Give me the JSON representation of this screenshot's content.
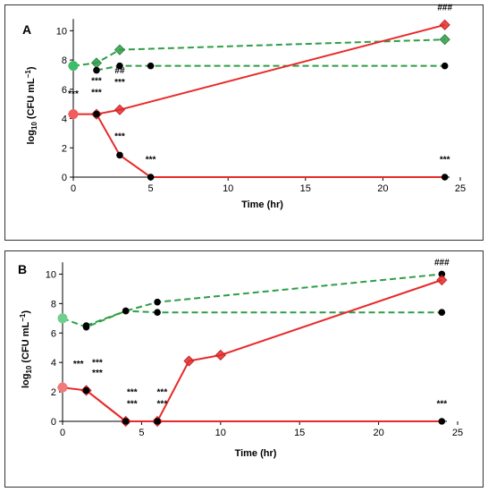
{
  "chart_data": [
    {
      "type": "line",
      "panel_label": "A",
      "xlabel": "Time (hr)",
      "ylabel_main": "log",
      "ylabel_sub": "10",
      "ylabel_rest": " (CFU mL",
      "ylabel_sup": "−1",
      "ylabel_end": ")",
      "xlim": [
        0,
        25
      ],
      "ylim": [
        0,
        11
      ],
      "xticks": [
        "0",
        "5",
        "10",
        "15",
        "20",
        "25"
      ],
      "yticks": [
        "0",
        "2",
        "4",
        "6",
        "8",
        "10"
      ],
      "grid": false,
      "series": [
        {
          "color": "#2e9e46",
          "dash": true,
          "marker": "diamond",
          "points": [
            [
              0,
              7.6
            ],
            [
              1.5,
              7.8
            ],
            [
              3,
              8.7
            ],
            [
              24,
              9.4
            ]
          ]
        },
        {
          "color": "#2e9e46",
          "dash": true,
          "marker": "circle",
          "points": [
            [
              1.5,
              7.3
            ],
            [
              3,
              7.6
            ],
            [
              5,
              7.6
            ],
            [
              24,
              7.6
            ]
          ]
        },
        {
          "color": "#e8292a",
          "dash": false,
          "marker": "diamond",
          "points": [
            [
              0,
              4.3
            ],
            [
              1.5,
              4.3
            ],
            [
              3,
              4.6
            ],
            [
              24,
              10.4
            ]
          ]
        },
        {
          "color": "#e8292a",
          "dash": false,
          "marker": "circle",
          "points": [
            [
              1.5,
              4.3
            ],
            [
              3,
              1.5
            ],
            [
              5,
              0
            ],
            [
              24,
              0
            ]
          ]
        }
      ],
      "annotations": [
        {
          "text": "***",
          "x": 0,
          "y": 5.5
        },
        {
          "text": "***",
          "x": 1.5,
          "y": 6.4
        },
        {
          "text": "***",
          "x": 1.5,
          "y": 5.6
        },
        {
          "text": "##",
          "x": 3,
          "y": 7.1
        },
        {
          "text": "***",
          "x": 3,
          "y": 6.3
        },
        {
          "text": "***",
          "x": 3,
          "y": 2.6
        },
        {
          "text": "***",
          "x": 5,
          "y": 1.0
        },
        {
          "text": "***",
          "x": 24,
          "y": 1.0
        },
        {
          "text": "###",
          "x": 24,
          "y": 11.4
        }
      ]
    },
    {
      "type": "line",
      "panel_label": "B",
      "xlabel": "Time (hr)",
      "ylabel_main": "log",
      "ylabel_sub": "10",
      "ylabel_rest": " (CFU mL",
      "ylabel_sup": "−1",
      "ylabel_end": ")",
      "xlim": [
        0,
        25
      ],
      "ylim": [
        0,
        11
      ],
      "xticks": [
        "0",
        "5",
        "10",
        "15",
        "20",
        "25"
      ],
      "yticks": [
        "0",
        "2",
        "4",
        "6",
        "8",
        "10"
      ],
      "grid": false,
      "series": [
        {
          "color": "#2e9e46",
          "dash": true,
          "marker": "circle",
          "points": [
            [
              0,
              7.0
            ],
            [
              1.5,
              6.4
            ],
            [
              4,
              7.5
            ],
            [
              6,
              8.1
            ],
            [
              24,
              10.0
            ]
          ]
        },
        {
          "color": "#2e9e46",
          "dash": true,
          "marker": "filledcircle",
          "points": [
            [
              1.5,
              6.5
            ],
            [
              4,
              7.5
            ],
            [
              6,
              7.4
            ],
            [
              24,
              7.4
            ]
          ]
        },
        {
          "color": "#e8292a",
          "dash": false,
          "marker": "diamond",
          "points": [
            [
              0,
              2.3
            ],
            [
              1.5,
              2.1
            ],
            [
              4,
              0
            ],
            [
              6,
              0
            ],
            [
              8,
              4.1
            ],
            [
              10,
              4.5
            ],
            [
              24,
              9.6
            ]
          ]
        },
        {
          "color": "#e8292a",
          "dash": false,
          "marker": "circle",
          "points": [
            [
              1.5,
              2.1
            ],
            [
              4,
              0
            ],
            [
              6,
              0
            ],
            [
              24,
              0
            ]
          ]
        }
      ],
      "annotations": [
        {
          "text": "***",
          "x": 1.0,
          "y": 3.7
        },
        {
          "text": "***",
          "x": 2.2,
          "y": 3.8
        },
        {
          "text": "***",
          "x": 2.2,
          "y": 3.1
        },
        {
          "text": "***",
          "x": 4.4,
          "y": 1.8
        },
        {
          "text": "***",
          "x": 4.4,
          "y": 1.0
        },
        {
          "text": "***",
          "x": 6.3,
          "y": 1.8
        },
        {
          "text": "***",
          "x": 6.3,
          "y": 1.0
        },
        {
          "text": "***",
          "x": 24,
          "y": 1.0
        },
        {
          "text": "###",
          "x": 24,
          "y": 10.6
        }
      ]
    }
  ]
}
